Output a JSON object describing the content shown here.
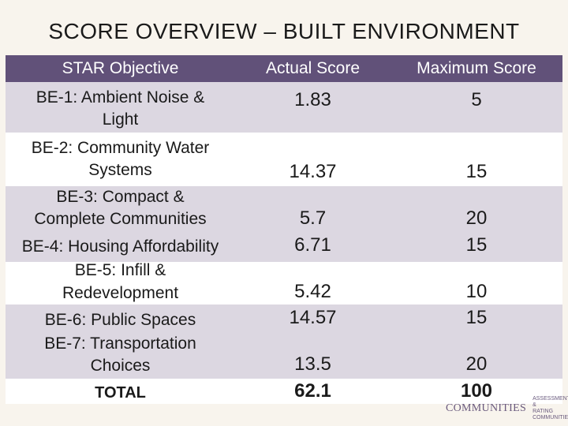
{
  "title": "SCORE OVERVIEW – BUILT ENVIRONMENT",
  "headers": {
    "objective": "STAR Objective",
    "actual": "Actual Score",
    "maximum": "Maximum Score"
  },
  "rows": [
    {
      "obj_lines": [
        "BE-1: Ambient Noise &",
        "Light"
      ],
      "actual": "1.83",
      "max": "5"
    },
    {
      "obj_lines": [
        "BE-2: Community Water",
        "Systems"
      ],
      "actual": "14.37",
      "max": "15"
    },
    {
      "obj_lines": [
        "BE-3: Compact &",
        "Complete Communities"
      ],
      "actual": "5.7",
      "max": "20"
    },
    {
      "obj_lines": [
        "BE-4: Housing Affordability"
      ],
      "actual": "6.71",
      "max": "15"
    },
    {
      "obj_lines": [
        "BE-5: Infill &",
        "Redevelopment"
      ],
      "actual": "5.42",
      "max": "10"
    },
    {
      "obj_lines": [
        "BE-6: Public Spaces"
      ],
      "actual": "14.57",
      "max": "15"
    },
    {
      "obj_lines": [
        "BE-7: Transportation",
        "Choices"
      ],
      "actual": "13.5",
      "max": "20"
    }
  ],
  "total": {
    "label": "TOTAL",
    "actual": "62.1",
    "max": "100"
  },
  "logo": {
    "name": "COMMUNITIES",
    "tagline_1": "ASSESSMENT &",
    "tagline_2": "RATING COMMUNITIES"
  },
  "colors": {
    "header_bg": "#615179",
    "band": "#dcd7e1",
    "page_bg": "#f8f4ed"
  }
}
